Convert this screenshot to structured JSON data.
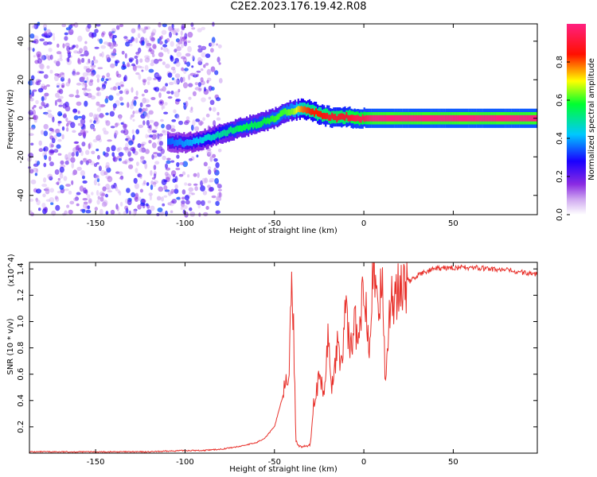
{
  "figure_title": "C2E2.2023.176.19.42.R08",
  "chart_data": [
    {
      "type": "heatmap",
      "title": "C2E2.2023.176.19.42.R08",
      "xlabel": "Height of straight line (km)",
      "ylabel": "Frequency (Hz)",
      "xlim": [
        -187,
        97
      ],
      "ylim": [
        -50,
        49
      ],
      "xticks": [
        -150,
        -100,
        -50,
        0,
        50
      ],
      "yticks": [
        -40,
        -20,
        0,
        20,
        40
      ],
      "colorbar": {
        "label": "Normalized spectral amplitude",
        "range": [
          0,
          1
        ],
        "ticks": [
          0.0,
          0.2,
          0.4,
          0.6,
          0.8
        ],
        "colors": [
          "#ffffff",
          "#8a2be2",
          "#1a00ff",
          "#00c8ff",
          "#00ff30",
          "#ffff00",
          "#ff1000",
          "#ff2080"
        ]
      },
      "ridge": {
        "description": "dominant frequency track vs height",
        "x": [
          -110,
          -100,
          -90,
          -80,
          -70,
          -60,
          -50,
          -45,
          -40,
          -35,
          -30,
          -25,
          -20,
          -15,
          -10,
          -5,
          0,
          5,
          20,
          40,
          60,
          80,
          97
        ],
        "y": [
          -12,
          -13,
          -11,
          -8,
          -5,
          -3,
          0,
          3,
          4,
          5,
          4,
          2,
          1,
          0,
          1,
          0,
          0,
          0,
          0,
          0,
          0,
          0,
          0
        ],
        "peak_amplitude": [
          0.35,
          0.4,
          0.45,
          0.5,
          0.55,
          0.55,
          0.6,
          0.6,
          0.65,
          0.8,
          0.85,
          0.85,
          0.9,
          0.9,
          0.9,
          0.95,
          0.95,
          1.0,
          1.0,
          1.0,
          1.0,
          1.0,
          1.0
        ]
      },
      "noise_region": {
        "x_range": [
          -187,
          -80
        ],
        "y_range": [
          -50,
          49
        ],
        "amplitude_range": [
          0.05,
          0.35
        ]
      }
    },
    {
      "type": "line",
      "title": "",
      "xlabel": "Height of straight line (km)",
      "ylabel": "SNR (10 * v/v)",
      "y_multiplier_label": "(x10^4)",
      "xlim": [
        -187,
        97
      ],
      "ylim": [
        0,
        1.45
      ],
      "xticks": [
        -150,
        -100,
        -50,
        0,
        50
      ],
      "yticks": [
        0.2,
        0.4,
        0.6,
        0.8,
        1.0,
        1.2,
        1.4
      ],
      "series": [
        {
          "name": "SNR",
          "color": "#e8302a",
          "x": [
            -187,
            -150,
            -120,
            -100,
            -90,
            -80,
            -70,
            -60,
            -55,
            -50,
            -45,
            -42,
            -40,
            -38,
            -36,
            -33,
            -30,
            -28,
            -25,
            -22,
            -20,
            -18,
            -15,
            -12,
            -10,
            -8,
            -5,
            -3,
            0,
            3,
            5,
            8,
            10,
            12,
            15,
            18,
            20,
            25,
            30,
            35,
            40,
            50,
            60,
            70,
            80,
            90,
            97
          ],
          "y": [
            0.01,
            0.01,
            0.01,
            0.02,
            0.02,
            0.03,
            0.05,
            0.08,
            0.12,
            0.2,
            0.45,
            0.6,
            1.35,
            0.1,
            0.05,
            0.05,
            0.06,
            0.4,
            0.55,
            0.45,
            0.9,
            0.5,
            0.8,
            0.7,
            1.2,
            0.75,
            1.0,
            0.8,
            1.3,
            0.85,
            1.45,
            1.0,
            1.4,
            0.6,
            1.15,
            1.2,
            1.25,
            1.3,
            1.35,
            1.38,
            1.4,
            1.41,
            1.41,
            1.4,
            1.39,
            1.37,
            1.36
          ]
        }
      ]
    }
  ]
}
